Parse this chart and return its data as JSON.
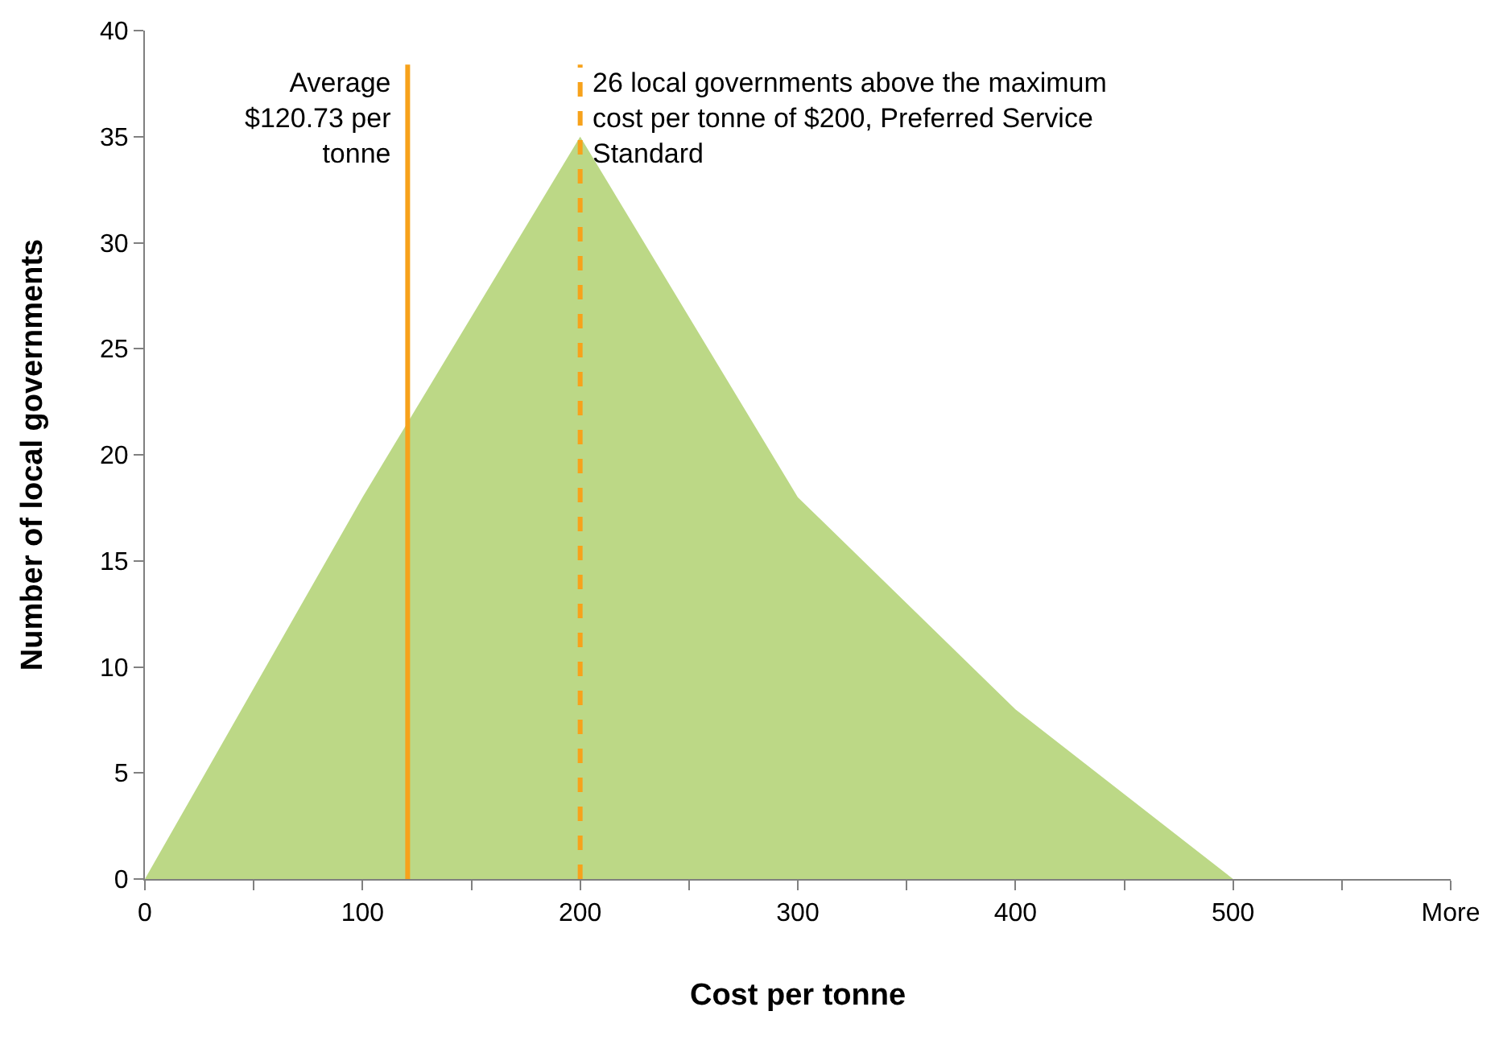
{
  "chart_data": {
    "type": "area",
    "xlabel": "Cost per tonne",
    "ylabel": "Number of local governments",
    "x": [
      0,
      100,
      200,
      300,
      400,
      500,
      600
    ],
    "series": [
      {
        "color": "#bcd886",
        "values": [
          0,
          18,
          35,
          18,
          8,
          0,
          0
        ]
      }
    ],
    "xlim": [
      0,
      600
    ],
    "xticks": [
      0,
      {
        "value": 50,
        "label": null
      },
      100,
      {
        "value": 150,
        "label": null
      },
      200,
      {
        "value": 250,
        "label": null
      },
      300,
      {
        "value": 350,
        "label": null
      },
      400,
      {
        "value": 450,
        "label": null
      },
      500,
      {
        "value": 550,
        "label": null
      },
      {
        "value": 600,
        "label": "More"
      }
    ],
    "ylim": [
      0,
      40
    ],
    "yticks": [
      0,
      5,
      10,
      15,
      20,
      25,
      30,
      35,
      40
    ],
    "ref_lines": [
      {
        "axis": "x",
        "value": 120.73,
        "label": "Average $120.73 per tonne",
        "color": "#f7a21b",
        "line_style": "solid"
      },
      {
        "axis": "x",
        "value": 200,
        "label": "26 local governments above the maximum cost per tonne of $200, Preferred Service Standard",
        "color": "#f7a21b",
        "line_style": "dashed"
      }
    ],
    "relative": false
  }
}
